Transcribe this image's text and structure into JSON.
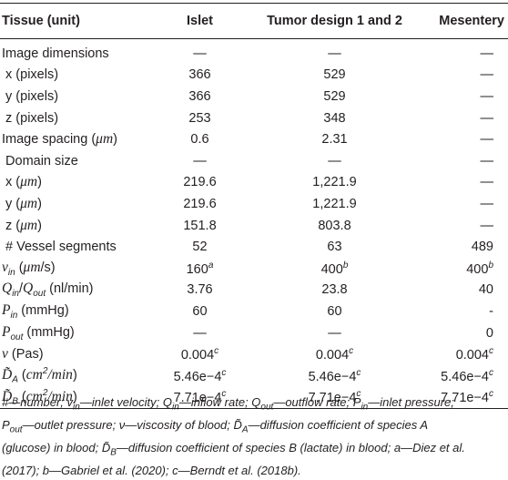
{
  "headers": [
    "Tissue (unit)",
    "Islet",
    "Tumor design 1 and 2",
    "Mesentery"
  ],
  "rows": [
    {
      "label": "Image dimensions",
      "values": [
        "—",
        "—",
        "—"
      ],
      "sups": [
        "",
        "",
        ""
      ]
    },
    {
      "label": " x (pixels)",
      "values": [
        "366",
        "529",
        "—"
      ],
      "sups": [
        "",
        "",
        ""
      ]
    },
    {
      "label": " y (pixels)",
      "values": [
        "366",
        "529",
        "—"
      ],
      "sups": [
        "",
        "",
        ""
      ]
    },
    {
      "label": " z (pixels)",
      "values": [
        "253",
        "348",
        "—"
      ],
      "sups": [
        "",
        "",
        ""
      ]
    },
    {
      "label": "Image spacing (μm)",
      "values": [
        "0.6",
        "2.31",
        "—"
      ],
      "sups": [
        "",
        "",
        ""
      ]
    },
    {
      "label": " Domain size",
      "values": [
        "—",
        "—",
        "—"
      ],
      "sups": [
        "",
        "",
        ""
      ]
    },
    {
      "label": " x (μm)",
      "values": [
        "219.6",
        "1,221.9",
        "—"
      ],
      "sups": [
        "",
        "",
        ""
      ]
    },
    {
      "label": " y (μm)",
      "values": [
        "219.6",
        "1,221.9",
        "—"
      ],
      "sups": [
        "",
        "",
        ""
      ]
    },
    {
      "label": " z (μm)",
      "values": [
        "151.8",
        "803.8",
        "—"
      ],
      "sups": [
        "",
        "",
        ""
      ]
    },
    {
      "label": " # Vessel segments",
      "values": [
        "52",
        "63",
        "489"
      ],
      "sups": [
        "",
        "",
        ""
      ]
    },
    {
      "label": "vin (μm/s)",
      "values": [
        "160",
        "400",
        "400"
      ],
      "sups": [
        "a",
        "b",
        "b"
      ]
    },
    {
      "label": "Qin/Qout (nl/min)",
      "values": [
        "3.76",
        "23.8",
        "40"
      ],
      "sups": [
        "",
        "",
        ""
      ]
    },
    {
      "label": "Pin (mmHg)",
      "values": [
        "60",
        "60",
        "-"
      ],
      "sups": [
        "",
        "",
        ""
      ]
    },
    {
      "label": "Pout (mmHg)",
      "values": [
        "—",
        "—",
        "0"
      ],
      "sups": [
        "",
        "",
        ""
      ]
    },
    {
      "label": "ν (Pas)",
      "values": [
        "0.004",
        "0.004",
        "0.004"
      ],
      "sups": [
        "c",
        "c",
        "c"
      ]
    },
    {
      "label": "D̃A (cm2/min)",
      "values": [
        "5.46e−4",
        "5.46e−4",
        "5.46e−4"
      ],
      "sups": [
        "c",
        "c",
        "c"
      ]
    },
    {
      "label": "D̃B (cm2/min)",
      "values": [
        "7.71e−4",
        "7.71e−4",
        "7.71e−4"
      ],
      "sups": [
        "c",
        "c",
        "c"
      ]
    }
  ],
  "footnote": "#—number; vin—inlet velocity; Qin—inflow rate; Qout—outflow rate; Pin—inlet pressure; Pout—outlet pressure; ν—viscosity of blood; D̃A—diffusion coefficient of species A (glucose) in blood; D̃B—diffusion coefficient of species B (lactate) in blood; a—Diez et al. (2017); b—Gabriel et al. (2020); c—Berndt et al. (2018b)."
}
